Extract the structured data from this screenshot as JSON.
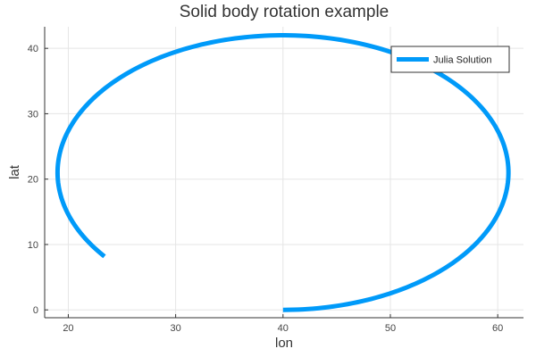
{
  "chart_data": {
    "type": "line",
    "title": "Solid body rotation example",
    "xlabel": "lon",
    "ylabel": "lat",
    "xlim": [
      17.8,
      62.4
    ],
    "ylim": [
      -1.2,
      43.3
    ],
    "xticks": [
      20,
      30,
      40,
      50,
      60
    ],
    "yticks": [
      0,
      10,
      20,
      30,
      40
    ],
    "grid": true,
    "legend_position": "top-right",
    "series": [
      {
        "name": "Julia Solution",
        "color": "#009AF9",
        "curve": {
          "center_lon": 40,
          "center_lat": 21,
          "radius_lon": 21,
          "radius_lat": 21,
          "start_lon": 40,
          "start_lat": 0,
          "end_lon": 23.4,
          "end_lat": 8.2,
          "direction": "counterclockwise"
        }
      }
    ]
  }
}
